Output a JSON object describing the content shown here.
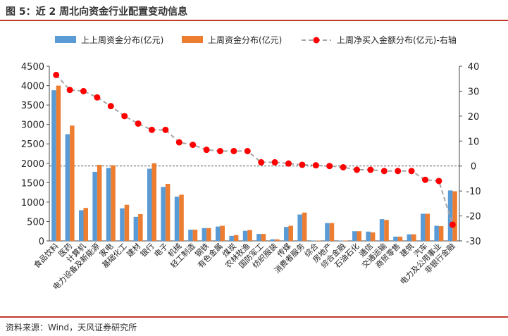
{
  "figure": {
    "title": "图 5：近 2 周北向资金行业配置变动信息",
    "source": "资料来源：Wind，天风证券研究所"
  },
  "colors": {
    "series1": "#5b9bd5",
    "series2": "#ed7d31",
    "series3_line": "#a6a6a6",
    "series3_marker": "#ff0000",
    "accent_rule": "#c0392b"
  },
  "chart_data": {
    "type": "bar",
    "categories": [
      "食品饮料",
      "医药",
      "计算机",
      "电力设备及新能源",
      "家电",
      "基础化工",
      "建材",
      "银行",
      "电子",
      "机械",
      "轻工制造",
      "钢铁",
      "有色金属",
      "煤炭",
      "农林牧渔",
      "国防军工",
      "纺织服装",
      "传媒",
      "消费者服务",
      "综合",
      "房地产",
      "综合金融",
      "石油石化",
      "通信",
      "交通运输",
      "商贸零售",
      "建筑",
      "汽车",
      "电力及公用事业",
      "非银行金融"
    ],
    "series": [
      {
        "name": "上上周资金分布(亿元)",
        "axis": "left",
        "values": [
          3880,
          2750,
          790,
          1780,
          1880,
          840,
          620,
          1860,
          1390,
          1140,
          290,
          330,
          370,
          130,
          260,
          180,
          40,
          360,
          680,
          10,
          460,
          10,
          250,
          240,
          560,
          110,
          170,
          700,
          390,
          1300
        ]
      },
      {
        "name": "上周资金分布(亿元)",
        "axis": "left",
        "values": [
          4000,
          2970,
          850,
          1960,
          1950,
          930,
          690,
          2000,
          1470,
          1190,
          290,
          330,
          390,
          150,
          280,
          180,
          40,
          390,
          730,
          10,
          460,
          10,
          250,
          220,
          540,
          110,
          170,
          700,
          380,
          1280
        ]
      },
      {
        "name": "上周净买入金额分布(亿元)-右轴",
        "axis": "right",
        "type": "line",
        "values": [
          36.5,
          30.5,
          30,
          27.5,
          24,
          20,
          17,
          14.5,
          14.5,
          9.5,
          8.5,
          6.5,
          6,
          6,
          6,
          1.5,
          1.5,
          1,
          0.5,
          0.3,
          0,
          -0.5,
          -1.5,
          -1.5,
          -2,
          -2,
          -2,
          -5.5,
          -6,
          -23.5
        ]
      }
    ],
    "ylim_left": [
      0,
      4500
    ],
    "yticks_left": [
      0,
      500,
      1000,
      1500,
      2000,
      2500,
      3000,
      3500,
      4000,
      4500
    ],
    "ylim_right": [
      -30,
      40
    ],
    "yticks_right": [
      -30,
      -20,
      -10,
      0,
      10,
      20,
      30,
      40
    ],
    "legend_position": "top",
    "grid": false
  }
}
